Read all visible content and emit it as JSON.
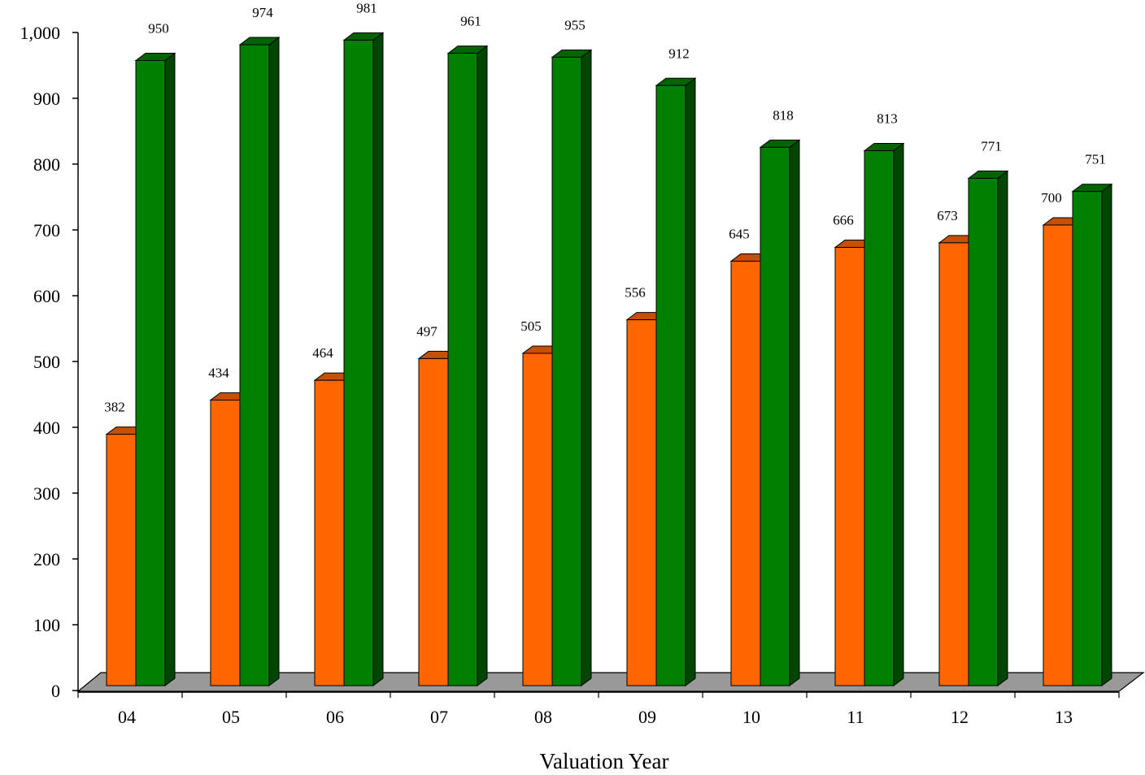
{
  "chart_data": {
    "type": "bar",
    "style": "3d-clustered-columns",
    "categories": [
      "04",
      "05",
      "06",
      "07",
      "08",
      "09",
      "10",
      "11",
      "12",
      "13"
    ],
    "series": [
      {
        "values": [
          382,
          434,
          464,
          497,
          505,
          556,
          645,
          666,
          673,
          700
        ],
        "color": "#ff6600"
      },
      {
        "values": [
          950,
          974,
          981,
          961,
          955,
          912,
          818,
          813,
          771,
          751
        ],
        "color": "#008000"
      }
    ],
    "title": "",
    "xlabel": "Valuation Year",
    "ylabel": "",
    "ylim": [
      0,
      1000
    ],
    "yticks": [
      "0",
      "100",
      "200",
      "300",
      "400",
      "500",
      "600",
      "700",
      "800",
      "900",
      "1,000"
    ],
    "grid": false,
    "legend": "none",
    "floor_color": "#999999"
  }
}
